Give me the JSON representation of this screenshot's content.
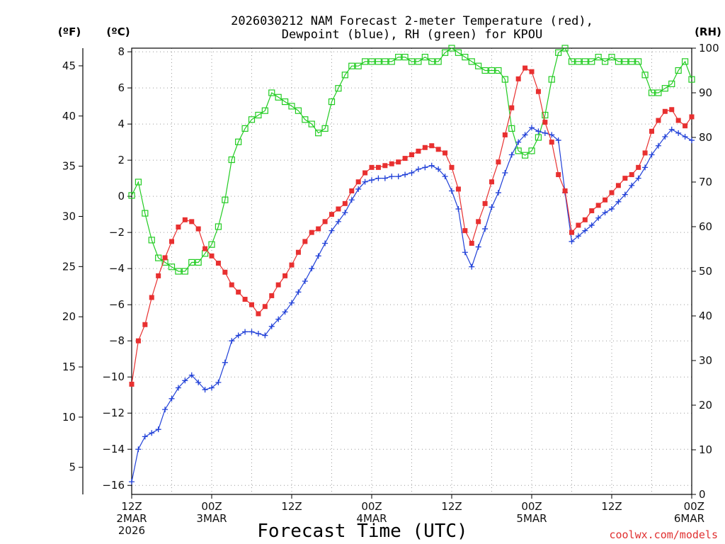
{
  "chart_data": {
    "type": "line",
    "title_line1": "2026030212 NAM Forecast 2-meter Temperature (red),",
    "title_line2": "Dewpoint (blue), RH (green) for KPOU",
    "xlabel": "Forecast Time (UTC)",
    "credit": "coolwx.com/models",
    "left_axis_head_f": "(ºF)",
    "left_axis_head_c": "(ºC)",
    "right_axis_head": "(RH)",
    "x_range_hours": [
      0,
      84
    ],
    "celsius_range": [
      -16.5,
      8.2
    ],
    "celsius_ticks": [
      -16,
      -14,
      -12,
      -10,
      -8,
      -6,
      -4,
      -2,
      0,
      2,
      4,
      6,
      8
    ],
    "celsius_tick_labels": [
      "−16",
      "−14",
      "−12",
      "−10",
      "−8",
      "−6",
      "−4",
      "−2",
      "0",
      "2",
      "4",
      "6",
      "8"
    ],
    "fahrenheit_ticks": [
      5,
      10,
      15,
      20,
      25,
      30,
      35,
      40,
      45
    ],
    "fahrenheit_tick_labels": [
      "5",
      "10",
      "15",
      "20",
      "25",
      "30",
      "35",
      "40",
      "45"
    ],
    "rh_range": [
      0,
      100
    ],
    "rh_ticks": [
      0,
      10,
      20,
      30,
      40,
      50,
      60,
      70,
      80,
      90,
      100
    ],
    "rh_tick_labels": [
      "0",
      "10",
      "20",
      "30",
      "40",
      "50",
      "60",
      "70",
      "80",
      "90",
      "100"
    ],
    "x_ticks": [
      {
        "hour": 0,
        "lines": [
          "12Z",
          "2MAR",
          "2026"
        ]
      },
      {
        "hour": 12,
        "lines": [
          "00Z",
          "3MAR"
        ]
      },
      {
        "hour": 24,
        "lines": [
          "12Z"
        ]
      },
      {
        "hour": 36,
        "lines": [
          "00Z",
          "4MAR"
        ]
      },
      {
        "hour": 48,
        "lines": [
          "12Z"
        ]
      },
      {
        "hour": 60,
        "lines": [
          "00Z",
          "5MAR"
        ]
      },
      {
        "hour": 72,
        "lines": [
          "12Z"
        ]
      },
      {
        "hour": 84,
        "lines": [
          "00Z",
          "6MAR"
        ]
      }
    ],
    "series": [
      {
        "name": "Temperature",
        "units": "°C",
        "axis": "left",
        "color": "#e83030",
        "marker": "filled-square",
        "x": [
          0,
          1,
          2,
          3,
          4,
          5,
          6,
          7,
          8,
          9,
          10,
          11,
          12,
          13,
          14,
          15,
          16,
          17,
          18,
          19,
          20,
          21,
          22,
          23,
          24,
          25,
          26,
          27,
          28,
          29,
          30,
          31,
          32,
          33,
          34,
          35,
          36,
          37,
          38,
          39,
          40,
          41,
          42,
          43,
          44,
          45,
          46,
          47,
          48,
          49,
          50,
          51,
          52,
          53,
          54,
          55,
          56,
          57,
          58,
          59,
          60,
          61,
          62,
          63,
          64,
          65,
          66,
          67,
          68,
          69,
          70,
          71,
          72,
          73,
          74,
          75,
          76,
          77,
          78,
          79,
          80,
          81,
          82,
          83,
          84
        ],
        "values": [
          -10.4,
          -8.0,
          -7.1,
          -5.6,
          -4.4,
          -3.4,
          -2.5,
          -1.7,
          -1.3,
          -1.4,
          -1.8,
          -2.9,
          -3.3,
          -3.7,
          -4.2,
          -4.9,
          -5.3,
          -5.7,
          -6.0,
          -6.5,
          -6.1,
          -5.5,
          -4.9,
          -4.4,
          -3.8,
          -3.1,
          -2.5,
          -2.0,
          -1.8,
          -1.4,
          -1.0,
          -0.7,
          -0.4,
          0.3,
          0.8,
          1.3,
          1.6,
          1.6,
          1.7,
          1.8,
          1.9,
          2.1,
          2.3,
          2.5,
          2.7,
          2.8,
          2.6,
          2.4,
          1.6,
          0.4,
          -1.9,
          -2.6,
          -1.4,
          -0.4,
          0.8,
          1.9,
          3.4,
          4.9,
          6.5,
          7.1,
          6.9,
          5.8,
          4.1,
          3.0,
          1.2,
          0.3,
          -2.0,
          -1.6,
          -1.3,
          -0.8,
          -0.5,
          -0.2,
          0.2,
          0.6,
          1.0,
          1.2,
          1.6,
          2.4,
          3.6,
          4.2,
          4.7,
          4.8,
          4.2,
          3.9,
          4.4
        ]
      },
      {
        "name": "Dewpoint",
        "units": "°C",
        "axis": "left",
        "color": "#2040d8",
        "marker": "plus",
        "x": [
          0,
          1,
          2,
          3,
          4,
          5,
          6,
          7,
          8,
          9,
          10,
          11,
          12,
          13,
          14,
          15,
          16,
          17,
          18,
          19,
          20,
          21,
          22,
          23,
          24,
          25,
          26,
          27,
          28,
          29,
          30,
          31,
          32,
          33,
          34,
          35,
          36,
          37,
          38,
          39,
          40,
          41,
          42,
          43,
          44,
          45,
          46,
          47,
          48,
          49,
          50,
          51,
          52,
          53,
          54,
          55,
          56,
          57,
          58,
          59,
          60,
          61,
          62,
          63,
          64,
          65,
          66,
          67,
          68,
          69,
          70,
          71,
          72,
          73,
          74,
          75,
          76,
          77,
          78,
          79,
          80,
          81,
          82,
          83,
          84
        ],
        "values": [
          -15.8,
          -14.0,
          -13.3,
          -13.1,
          -12.9,
          -11.8,
          -11.2,
          -10.6,
          -10.2,
          -9.9,
          -10.3,
          -10.7,
          -10.6,
          -10.3,
          -9.2,
          -8.0,
          -7.7,
          -7.5,
          -7.5,
          -7.6,
          -7.7,
          -7.2,
          -6.8,
          -6.4,
          -5.9,
          -5.3,
          -4.7,
          -4.0,
          -3.3,
          -2.6,
          -1.9,
          -1.4,
          -0.9,
          -0.2,
          0.4,
          0.8,
          0.9,
          1.0,
          1.0,
          1.1,
          1.1,
          1.2,
          1.3,
          1.5,
          1.6,
          1.7,
          1.5,
          1.1,
          0.3,
          -0.7,
          -3.1,
          -3.9,
          -2.8,
          -1.8,
          -0.6,
          0.2,
          1.3,
          2.3,
          3.0,
          3.4,
          3.8,
          3.6,
          3.5,
          3.4,
          3.1,
          0.2,
          -2.5,
          -2.2,
          -1.9,
          -1.6,
          -1.2,
          -0.9,
          -0.7,
          -0.3,
          0.1,
          0.6,
          1.0,
          1.6,
          2.3,
          2.8,
          3.3,
          3.7,
          3.5,
          3.3,
          3.1
        ]
      },
      {
        "name": "RH",
        "units": "%",
        "axis": "right",
        "color": "#22cc22",
        "marker": "open-square",
        "x": [
          0,
          1,
          2,
          3,
          4,
          5,
          6,
          7,
          8,
          9,
          10,
          11,
          12,
          13,
          14,
          15,
          16,
          17,
          18,
          19,
          20,
          21,
          22,
          23,
          24,
          25,
          26,
          27,
          28,
          29,
          30,
          31,
          32,
          33,
          34,
          35,
          36,
          37,
          38,
          39,
          40,
          41,
          42,
          43,
          44,
          45,
          46,
          47,
          48,
          49,
          50,
          51,
          52,
          53,
          54,
          55,
          56,
          57,
          58,
          59,
          60,
          61,
          62,
          63,
          64,
          65,
          66,
          67,
          68,
          69,
          70,
          71,
          72,
          73,
          74,
          75,
          76,
          77,
          78,
          79,
          80,
          81,
          82,
          83,
          84
        ],
        "values": [
          67,
          70,
          63,
          57,
          53,
          52,
          51,
          50,
          50,
          52,
          52,
          54,
          56,
          60,
          66,
          75,
          79,
          82,
          84,
          85,
          86,
          90,
          89,
          88,
          87,
          86,
          84,
          83,
          81,
          82,
          88,
          91,
          94,
          96,
          96,
          97,
          97,
          97,
          97,
          97,
          98,
          98,
          97,
          97,
          98,
          97,
          97,
          99,
          100,
          99,
          98,
          97,
          96,
          95,
          95,
          95,
          93,
          82,
          77,
          76,
          77,
          80,
          85,
          93,
          99,
          100,
          97,
          97,
          97,
          97,
          98,
          97,
          98,
          97,
          97,
          97,
          97,
          94,
          90,
          90,
          91,
          92,
          95,
          97,
          93
        ]
      }
    ]
  }
}
